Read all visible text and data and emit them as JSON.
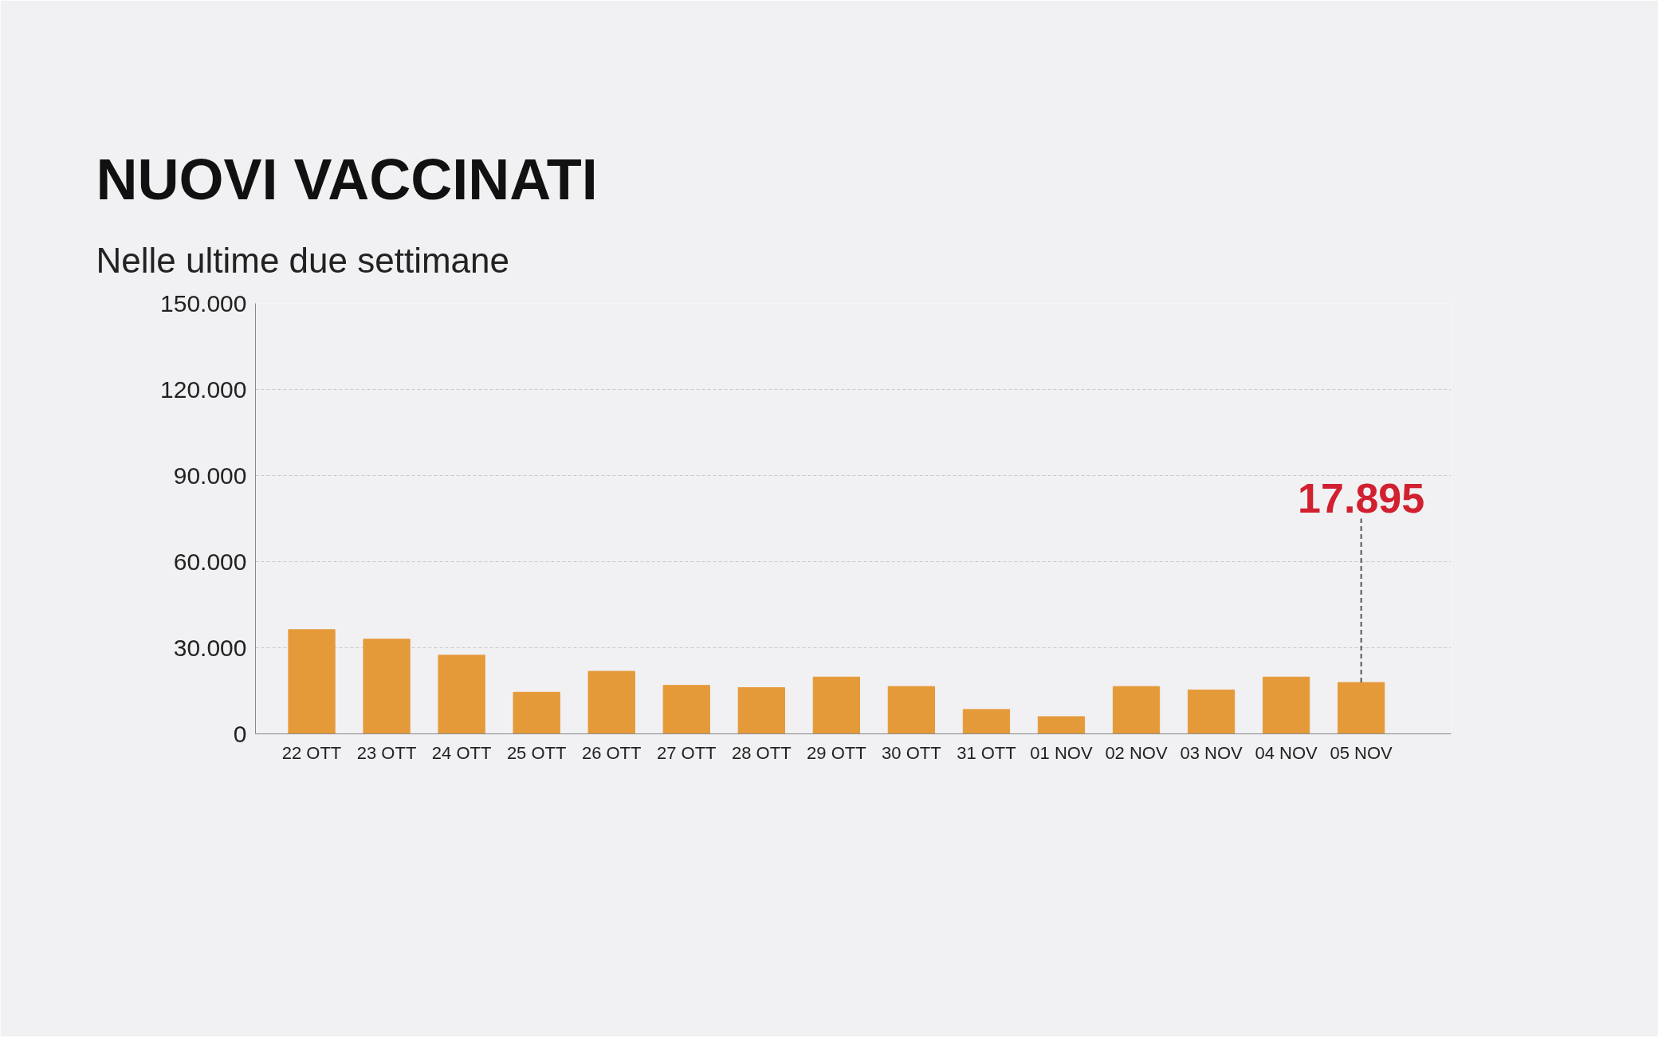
{
  "chart_data": {
    "type": "bar",
    "title": "NUOVI VACCINATI",
    "subtitle": "Nelle ultime due settimane",
    "categories": [
      "22 OTT",
      "23 OTT",
      "24 OTT",
      "25 OTT",
      "26 OTT",
      "27 OTT",
      "28 OTT",
      "29 OTT",
      "30 OTT",
      "31 OTT",
      "01 NOV",
      "02 NOV",
      "03 NOV",
      "04 NOV",
      "05 NOV"
    ],
    "values": [
      36300,
      33000,
      27400,
      14500,
      21800,
      16900,
      16100,
      19800,
      16500,
      8500,
      6000,
      16500,
      15300,
      19800,
      17895
    ],
    "value_labels": [
      null,
      null,
      null,
      null,
      null,
      null,
      null,
      null,
      null,
      null,
      null,
      null,
      null,
      null,
      "17.895"
    ],
    "color": "#e59a3a",
    "ylim": [
      0,
      150000
    ],
    "yticks": [
      {
        "value": 0,
        "label": "0"
      },
      {
        "value": 30000,
        "label": "30.000"
      },
      {
        "value": 60000,
        "label": "60.000"
      },
      {
        "value": 90000,
        "label": "90.000"
      },
      {
        "value": 120000,
        "label": "120.000"
      },
      {
        "value": 150000,
        "label": "150.000"
      }
    ],
    "grid": "y"
  }
}
